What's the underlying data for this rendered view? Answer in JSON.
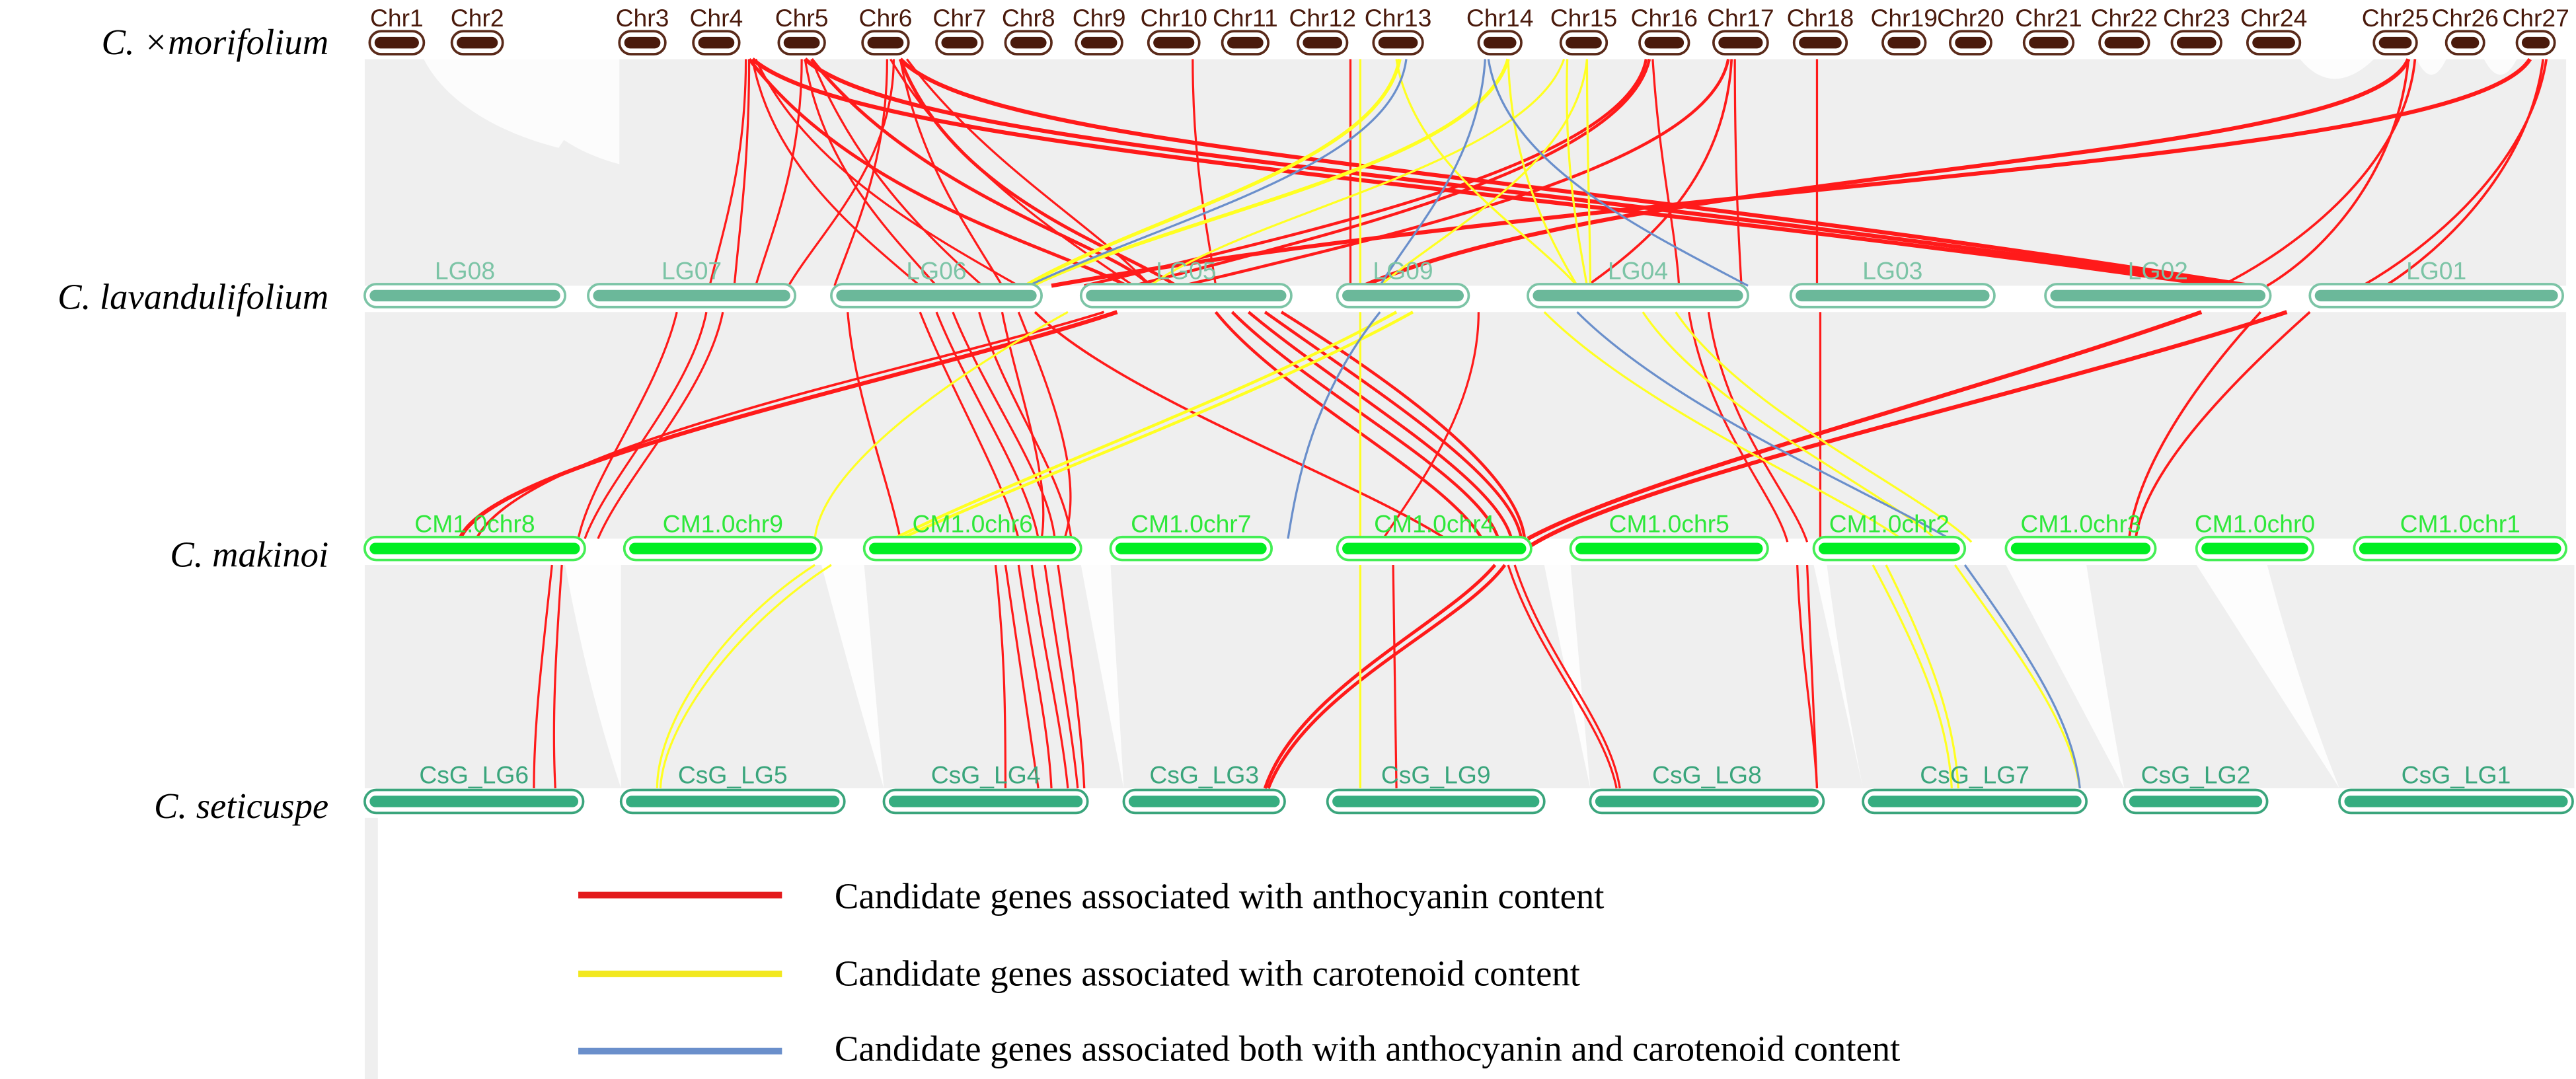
{
  "chart_data": {
    "type": "synteny",
    "title": "",
    "species": [
      {
        "name": "C. ×morifolium",
        "row": 0
      },
      {
        "name": "C. lavandulifolium",
        "row": 1
      },
      {
        "name": "C. makinoi",
        "row": 2
      },
      {
        "name": "C. seticuspe",
        "row": 3
      }
    ],
    "rows": [
      {
        "species": "C. ×morifolium",
        "style": "brown",
        "chromosomes": [
          "Chr1",
          "Chr2",
          "Chr3",
          "Chr4",
          "Chr5",
          "Chr6",
          "Chr7",
          "Chr8",
          "Chr9",
          "Chr10",
          "Chr11",
          "Chr12",
          "Chr13",
          "Chr14",
          "Chr15",
          "Chr16",
          "Chr17",
          "Chr18",
          "Chr19",
          "Chr20",
          "Chr21",
          "Chr22",
          "Chr23",
          "Chr24",
          "Chr25",
          "Chr26",
          "Chr27"
        ]
      },
      {
        "species": "C. lavandulifolium",
        "style": "teal",
        "chromosomes": [
          "LG08",
          "LG07",
          "LG06",
          "LG05",
          "LG09",
          "LG04",
          "LG03",
          "LG02",
          "LG01"
        ]
      },
      {
        "species": "C. makinoi",
        "style": "green",
        "chromosomes": [
          "CM1.0chr8",
          "CM1.0chr9",
          "CM1.0chr6",
          "CM1.0chr7",
          "CM1.0chr4",
          "CM1.0chr5",
          "CM1.0chr2",
          "CM1.0chr3",
          "CM1.0chr0",
          "CM1.0chr1"
        ]
      },
      {
        "species": "C. seticuspe",
        "style": "seagreen",
        "chromosomes": [
          "CsG_LG6",
          "CsG_LG5",
          "CsG_LG4",
          "CsG_LG3",
          "CsG_LG9",
          "CsG_LG8",
          "CsG_LG7",
          "CsG_LG2",
          "CsG_LG1"
        ]
      }
    ],
    "legend": [
      {
        "label": "Candidate genes associated with anthocyanin content",
        "color": "#e31a1c"
      },
      {
        "label": "Candidate genes associated with carotenoid content",
        "color": "#f2e81e"
      },
      {
        "label": "Candidate genes associated both with anthocyanin and carotenoid content",
        "color": "#6a8fcb"
      }
    ],
    "background_synteny_color": "#efefef",
    "highlighted_links_summary": {
      "anthocyanin": "Red links from Chr4, Chr5, Chr6, Chr10, Chr12, Chr16, Chr17, Chr18, Chr25, Chr27 to LG07, LG06, LG05, LG09, LG04, LG03, LG02, LG01; onward to CM1.0chr8, chr9, chr6, chr4, chr5, chr2, chr3 and CsG_LG6, LG4, LG3, LG9, LG8",
      "carotenoid": "Yellow links from Chr12, Chr13, Chr14, Chr15 to LG06, LG05, LG09, LG04; onward to CM1.0chr9, chr6, chr4, chr2 and CsG_LG5, LG9, LG7",
      "both": "Blue links from Chr13, Chr14 to LG06, LG09, LG04; onward to CM1.0chr7, chr2 and CsG_LG7"
    }
  },
  "labels": {
    "species_0": "C. ×morifolium",
    "species_1": "C. lavandulifolium",
    "species_2": "C. makinoi",
    "species_3": "C. seticuspe",
    "legend_0": "Candidate genes associated with anthocyanin content",
    "legend_1": "Candidate genes associated with carotenoid content",
    "legend_2": "Candidate genes associated both with anthocyanin and carotenoid content"
  },
  "colors": {
    "anthocyanin": "#e31a1c",
    "carotenoid": "#f2e81e",
    "both": "#6a8fcb",
    "top_chr": "#4a1a0c",
    "lg_chr": "#6bb89a",
    "cm_chr": "#00ee22",
    "csg_chr": "#36ad80"
  }
}
